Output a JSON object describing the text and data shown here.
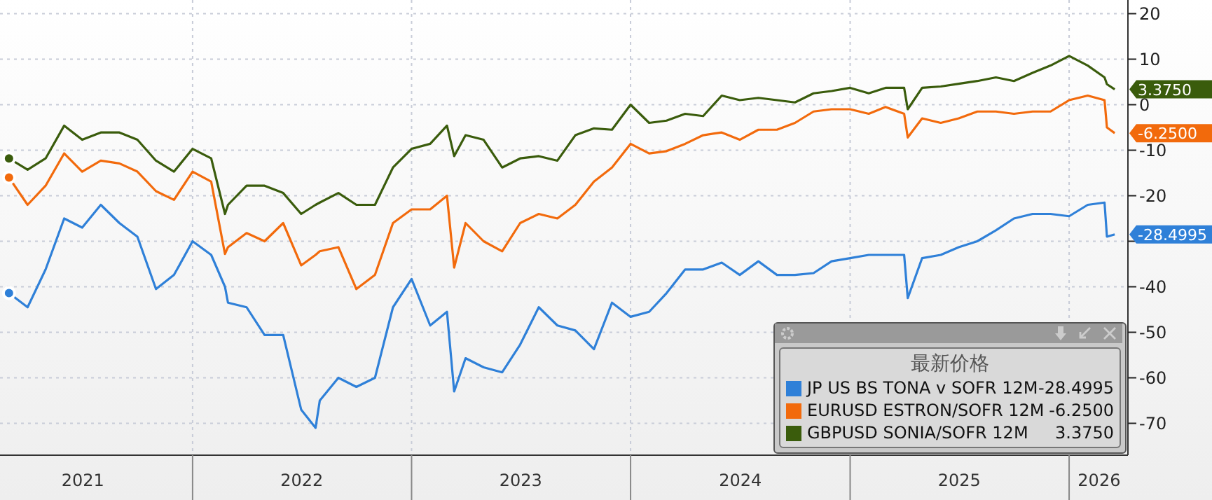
{
  "chart_data": {
    "type": "line",
    "x": [
      "2021-03",
      "2021-04",
      "2021-05",
      "2021-06",
      "2021-07",
      "2021-08",
      "2021-09",
      "2021-10",
      "2021-11",
      "2021-12",
      "2022-01",
      "2022-02",
      "2022-02-24",
      "2022-03",
      "2022-04",
      "2022-05",
      "2022-06",
      "2022-07",
      "2022-07-25",
      "2022-08",
      "2022-09",
      "2022-10",
      "2022-11",
      "2022-12",
      "2023-01",
      "2023-02",
      "2023-03",
      "2023-03-13",
      "2023-04",
      "2023-05",
      "2023-06",
      "2023-07",
      "2023-08",
      "2023-09",
      "2023-10",
      "2023-11",
      "2023-12",
      "2024-01",
      "2024-02",
      "2024-03",
      "2024-04",
      "2024-05",
      "2024-06",
      "2024-07",
      "2024-08",
      "2024-09",
      "2024-10",
      "2024-11",
      "2024-12",
      "2025-01",
      "2025-02",
      "2025-03",
      "2025-04",
      "2025-04-07",
      "2025-05",
      "2025-06",
      "2025-07",
      "2025-08",
      "2025-09",
      "2025-10",
      "2025-11",
      "2025-12",
      "2026-01",
      "2026-02",
      "2026-03",
      "2026-03-05",
      "2026-03-18"
    ],
    "series": [
      {
        "name": "JP US BS TONA v SOFR 12M",
        "color": "#2f80d8",
        "values": [
          -41.4,
          -44.5,
          -36.2,
          -25,
          -27,
          -22,
          -26,
          -29,
          -40.5,
          -37.4,
          -30,
          -33,
          -40,
          -43.5,
          -44.5,
          -50.6,
          -50.6,
          -67,
          -71,
          -65,
          -60,
          -62,
          -60,
          -44.5,
          -38.3,
          -48.5,
          -45.5,
          -63,
          -55.7,
          -57.7,
          -58.8,
          -52.7,
          -44.5,
          -48.5,
          -49.6,
          -53.7,
          -43.5,
          -46.6,
          -45.5,
          -41.4,
          -36.2,
          -36.2,
          -34.7,
          -37.4,
          -34.4,
          -37.4,
          -37.4,
          -37,
          -34.4,
          -33.7,
          -33,
          -33,
          -33,
          -42.5,
          -33.7,
          -33,
          -31.3,
          -30,
          -27.6,
          -25,
          -24,
          -24,
          -24.5,
          -22,
          -21.5,
          -29,
          -28.4995
        ]
      },
      {
        "name": "EURUSD ESTRON/SOFR 12M",
        "color": "#f26a0c",
        "values": [
          -16,
          -22,
          -17.8,
          -10.7,
          -14.7,
          -12.3,
          -12.9,
          -14.7,
          -19,
          -20.9,
          -14.7,
          -16.9,
          -32.8,
          -31.3,
          -28.2,
          -30,
          -26,
          -35.3,
          -33,
          -32.2,
          -31.3,
          -40.5,
          -37.4,
          -26,
          -23,
          -23,
          -20,
          -35.8,
          -26,
          -30,
          -32.2,
          -26,
          -24,
          -25,
          -22,
          -16.9,
          -13.8,
          -8.6,
          -10.7,
          -10.2,
          -8.6,
          -6.7,
          -6.1,
          -7.7,
          -5.5,
          -5.5,
          -4,
          -1.5,
          -1,
          -1,
          -2,
          -0.5,
          -2,
          -7.2,
          -3,
          -4,
          -3,
          -1.5,
          -1.5,
          -2,
          -1.5,
          -1.5,
          1,
          2,
          1,
          -5,
          -6.25
        ]
      },
      {
        "name": "GBPUSD SONIA/SOFR 12M",
        "color": "#3a5c0c",
        "values": [
          -11.8,
          -14.3,
          -11.8,
          -4.6,
          -7.7,
          -6.1,
          -6.1,
          -7.7,
          -12.3,
          -14.7,
          -9.7,
          -11.8,
          -24,
          -22,
          -17.8,
          -17.8,
          -19.4,
          -24,
          -22,
          -21.5,
          -19.4,
          -22,
          -22,
          -13.8,
          -9.7,
          -8.6,
          -4.6,
          -11.3,
          -6.7,
          -7.7,
          -13.8,
          -11.8,
          -11.3,
          -12.3,
          -6.7,
          -5.2,
          -5.5,
          0,
          -4,
          -3.5,
          -2,
          -2.5,
          2,
          1,
          1.5,
          1,
          0.5,
          2.5,
          3,
          3.7,
          2.5,
          3.7,
          3.7,
          -1,
          3.7,
          4,
          4.6,
          5.2,
          6,
          5.2,
          7,
          8.6,
          10.7,
          8.6,
          6,
          4.5,
          3.375
        ]
      }
    ],
    "annotations": [
      {
        "text": "-28.4995",
        "x": "2026-03-18",
        "y": -28.4995
      },
      {
        "text": "-6.2500",
        "x": "2026-03-18",
        "y": -6.25
      },
      {
        "text": "3.3750",
        "x": "2026-03-18",
        "y": 3.375
      }
    ],
    "legend_title": "最新价格",
    "legend": "bottom right",
    "xlim": [
      "2021-02-14",
      "2026-04-09"
    ],
    "xticks": [
      {
        "value": "2021-07-02",
        "label": "2021"
      },
      {
        "value": "2022-01-01",
        "label": null
      },
      {
        "value": "2022-07-02",
        "label": "2022"
      },
      {
        "value": "2023-01-01",
        "label": null
      },
      {
        "value": "2023-07-02",
        "label": "2023"
      },
      {
        "value": "2024-01-01",
        "label": null
      },
      {
        "value": "2024-07-02",
        "label": "2024"
      },
      {
        "value": "2025-01-01",
        "label": null
      },
      {
        "value": "2025-07-02",
        "label": "2025"
      },
      {
        "value": "2026-01-01",
        "label": null
      },
      {
        "value": "2026-02-20",
        "label": "2026"
      }
    ],
    "ylim": [
      -77,
      23
    ],
    "yticks": [
      -70,
      -60,
      -50,
      -40,
      {
        "value": -30,
        "label": null
      },
      -20,
      -10,
      0,
      10,
      20
    ],
    "grid": true,
    "marker": "none",
    "line_style": "solid"
  }
}
